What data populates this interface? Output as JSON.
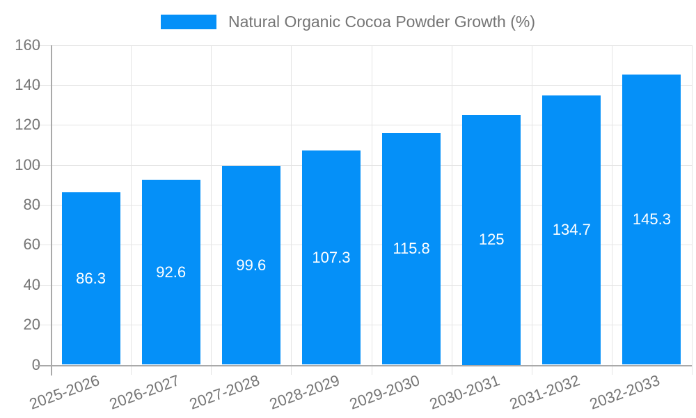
{
  "chart_data": {
    "type": "bar",
    "title": "Natural Organic Cocoa Powder Growth (%)",
    "legend": [
      "Natural Organic Cocoa Powder Growth (%)"
    ],
    "legend_position": "top",
    "categories": [
      "2025-2026",
      "2026-2027",
      "2027-2028",
      "2028-2029",
      "2029-2030",
      "2030-2031",
      "2031-2032",
      "2032-2033"
    ],
    "values": [
      86.3,
      92.6,
      99.6,
      107.3,
      115.8,
      125,
      134.7,
      145.3
    ],
    "xlabel": "",
    "ylabel": "",
    "ylim": [
      0,
      160
    ],
    "yticks": [
      0,
      20,
      40,
      60,
      80,
      100,
      120,
      140,
      160
    ],
    "grid": true,
    "x_label_rotation_deg": -20,
    "colors": {
      "bar": "#0590f8",
      "bar_value_label": "#ffffff",
      "axis_text": "#757575",
      "grid_line": "#e4e4e4",
      "axis_line": "#a9a9a9"
    }
  }
}
